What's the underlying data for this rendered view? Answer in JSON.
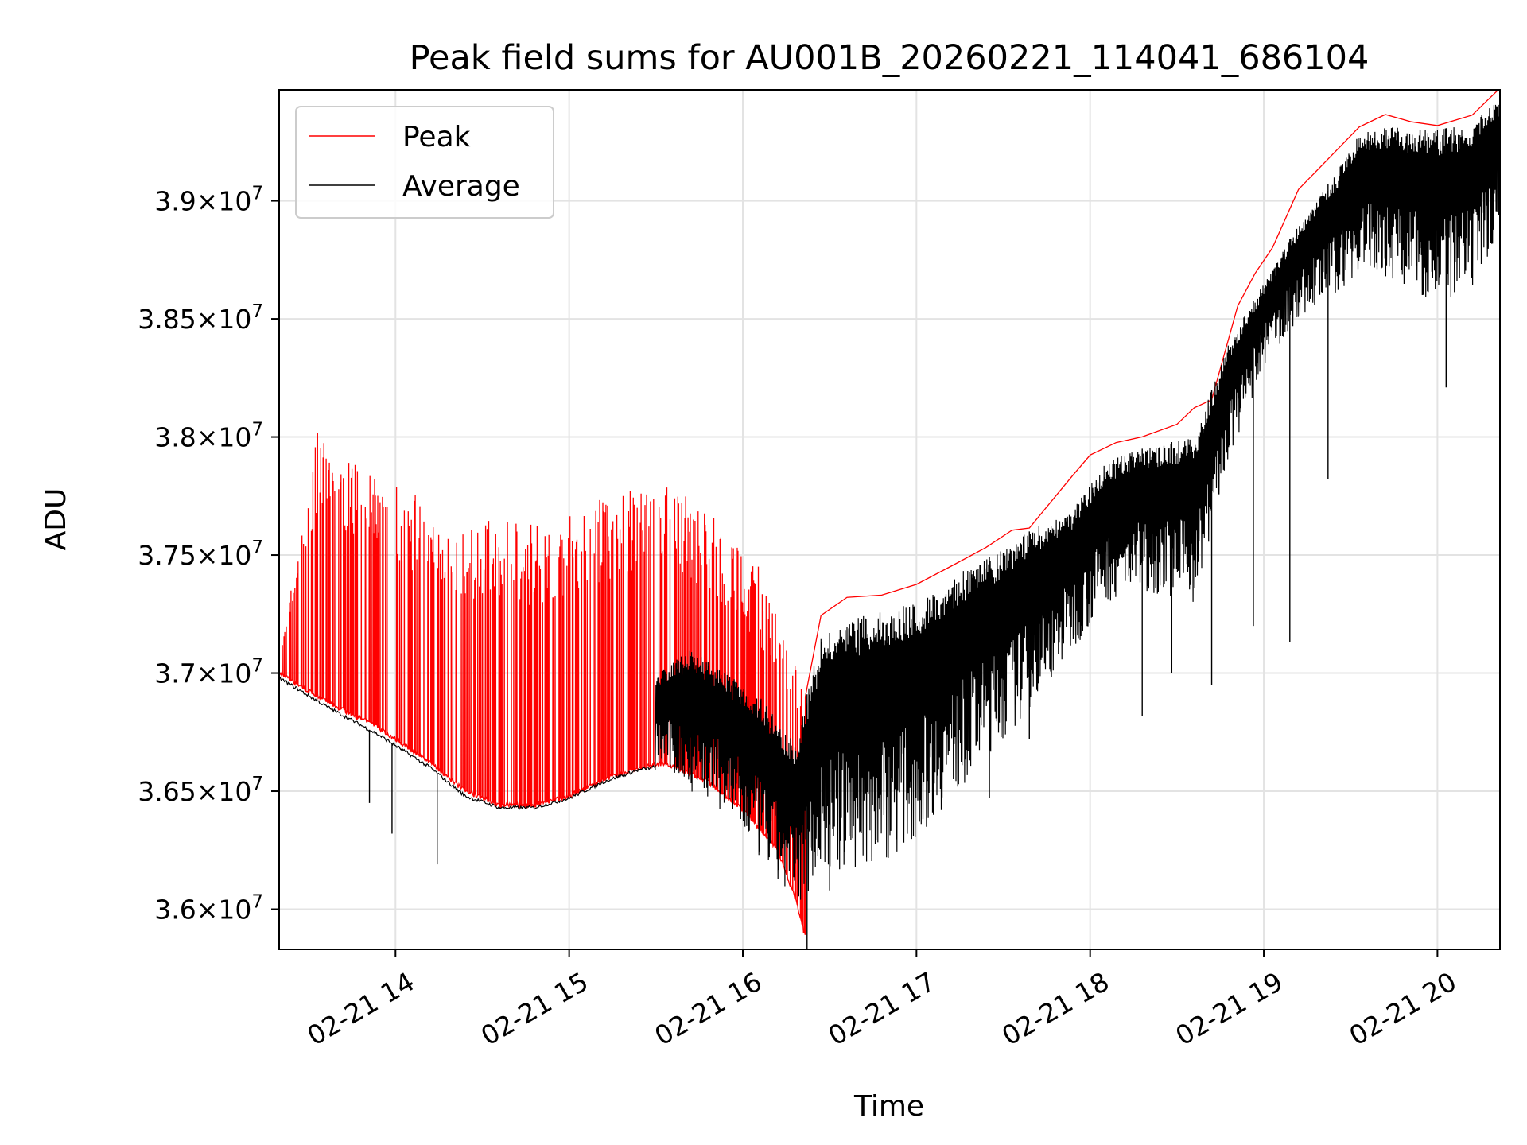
{
  "chart_data": {
    "type": "line",
    "title": "Peak field sums for AU001B_20260221_114041_686104",
    "xlabel": "Time",
    "ylabel": "ADU",
    "xlim": [
      13.33,
      20.36
    ],
    "ylim": [
      35830000,
      39470000
    ],
    "grid": true,
    "legend_position": "top-left",
    "x_ticks": [
      {
        "value": 14,
        "label": "02-21 14"
      },
      {
        "value": 15,
        "label": "02-21 15"
      },
      {
        "value": 16,
        "label": "02-21 16"
      },
      {
        "value": 17,
        "label": "02-21 17"
      },
      {
        "value": 18,
        "label": "02-21 18"
      },
      {
        "value": 19,
        "label": "02-21 19"
      },
      {
        "value": 20,
        "label": "02-21 20"
      }
    ],
    "y_ticks": [
      {
        "value": 36000000,
        "mantissa": "3.6",
        "exponent": "7"
      },
      {
        "value": 36500000,
        "mantissa": "3.65",
        "exponent": "7"
      },
      {
        "value": 37000000,
        "mantissa": "3.7",
        "exponent": "7"
      },
      {
        "value": 37500000,
        "mantissa": "3.75",
        "exponent": "7"
      },
      {
        "value": 38000000,
        "mantissa": "3.8",
        "exponent": "7"
      },
      {
        "value": 38500000,
        "mantissa": "3.85",
        "exponent": "7"
      },
      {
        "value": 39000000,
        "mantissa": "3.9",
        "exponent": "7"
      }
    ],
    "times_symbol": "×",
    "tick_base": "10",
    "series": [
      {
        "name": "Peak",
        "color": "#ff0000",
        "baseline": [
          [
            13.33,
            37000000
          ],
          [
            13.6,
            36880000
          ],
          [
            13.9,
            36770000
          ],
          [
            14.2,
            36620000
          ],
          [
            14.4,
            36500000
          ],
          [
            14.6,
            36440000
          ],
          [
            14.8,
            36440000
          ],
          [
            15.0,
            36480000
          ],
          [
            15.2,
            36550000
          ],
          [
            15.4,
            36600000
          ],
          [
            15.55,
            36620000
          ],
          [
            15.8,
            36540000
          ],
          [
            16.0,
            36420000
          ],
          [
            16.2,
            36250000
          ],
          [
            16.3,
            36050000
          ],
          [
            16.36,
            35880000
          ]
        ],
        "peak_envelope": [
          [
            13.33,
            37050000
          ],
          [
            13.55,
            38050000
          ],
          [
            13.7,
            37900000
          ],
          [
            13.9,
            37850000
          ],
          [
            14.2,
            37720000
          ],
          [
            14.5,
            37650000
          ],
          [
            14.8,
            37650000
          ],
          [
            15.1,
            37720000
          ],
          [
            15.35,
            37780000
          ],
          [
            15.55,
            37820000
          ],
          [
            15.75,
            37720000
          ],
          [
            15.9,
            37620000
          ],
          [
            16.1,
            37450000
          ],
          [
            16.25,
            37150000
          ],
          [
            16.36,
            36900000
          ]
        ],
        "upper_line": [
          [
            16.36,
            36900000
          ],
          [
            16.45,
            37250000
          ],
          [
            16.6,
            37320000
          ],
          [
            16.8,
            37330000
          ],
          [
            17.0,
            37380000
          ],
          [
            17.2,
            37450000
          ],
          [
            17.4,
            37530000
          ],
          [
            17.55,
            37600000
          ],
          [
            17.65,
            37620000
          ],
          [
            17.9,
            37830000
          ],
          [
            18.0,
            37920000
          ],
          [
            18.15,
            37980000
          ],
          [
            18.3,
            38000000
          ],
          [
            18.5,
            38050000
          ],
          [
            18.6,
            38120000
          ],
          [
            18.7,
            38150000
          ],
          [
            18.85,
            38550000
          ],
          [
            18.95,
            38700000
          ],
          [
            19.05,
            38800000
          ],
          [
            19.2,
            39050000
          ],
          [
            19.4,
            39200000
          ],
          [
            19.55,
            39320000
          ],
          [
            19.7,
            39360000
          ],
          [
            19.85,
            39340000
          ],
          [
            20.0,
            39320000
          ],
          [
            20.2,
            39360000
          ],
          [
            20.36,
            39470000
          ]
        ]
      },
      {
        "name": "Average",
        "color": "#000000",
        "baseline": [
          [
            13.33,
            36980000
          ],
          [
            13.6,
            36860000
          ],
          [
            13.9,
            36740000
          ],
          [
            14.2,
            36600000
          ],
          [
            14.4,
            36480000
          ],
          [
            14.6,
            36430000
          ],
          [
            14.8,
            36430000
          ],
          [
            15.0,
            36470000
          ],
          [
            15.2,
            36540000
          ],
          [
            15.4,
            36590000
          ],
          [
            15.55,
            36610000
          ],
          [
            15.8,
            36530000
          ],
          [
            16.0,
            36400000
          ],
          [
            16.2,
            36230000
          ],
          [
            16.3,
            36030000
          ],
          [
            16.36,
            35860000
          ]
        ],
        "dense_top": [
          [
            15.5,
            37000000
          ],
          [
            15.7,
            37100000
          ],
          [
            15.9,
            37000000
          ],
          [
            16.1,
            36900000
          ],
          [
            16.3,
            36700000
          ],
          [
            16.45,
            37150000
          ],
          [
            16.7,
            37250000
          ],
          [
            17.0,
            37300000
          ],
          [
            17.3,
            37450000
          ],
          [
            17.45,
            37500000
          ],
          [
            17.6,
            37580000
          ],
          [
            17.9,
            37700000
          ],
          [
            18.1,
            37900000
          ],
          [
            18.3,
            37950000
          ],
          [
            18.6,
            38000000
          ],
          [
            18.8,
            38400000
          ],
          [
            19.0,
            38650000
          ],
          [
            19.2,
            38900000
          ],
          [
            19.4,
            39100000
          ],
          [
            19.55,
            39280000
          ],
          [
            19.7,
            39320000
          ],
          [
            19.85,
            39300000
          ],
          [
            20.0,
            39300000
          ],
          [
            20.2,
            39330000
          ],
          [
            20.36,
            39440000
          ]
        ],
        "dense_bottom": [
          [
            15.5,
            36600000
          ],
          [
            15.7,
            36500000
          ],
          [
            15.9,
            36400000
          ],
          [
            16.1,
            36200000
          ],
          [
            16.3,
            36000000
          ],
          [
            16.45,
            36150000
          ],
          [
            16.7,
            36150000
          ],
          [
            17.0,
            36300000
          ],
          [
            17.3,
            36550000
          ],
          [
            17.6,
            36800000
          ],
          [
            17.9,
            37100000
          ],
          [
            18.1,
            37300000
          ],
          [
            18.3,
            37350000
          ],
          [
            18.6,
            37300000
          ],
          [
            18.8,
            37900000
          ],
          [
            19.0,
            38300000
          ],
          [
            19.2,
            38500000
          ],
          [
            19.4,
            38600000
          ],
          [
            19.6,
            38700000
          ],
          [
            19.8,
            38650000
          ],
          [
            20.0,
            38550000
          ],
          [
            20.2,
            38600000
          ],
          [
            20.36,
            38900000
          ]
        ],
        "deep_dips": [
          [
            13.85,
            36450000
          ],
          [
            13.98,
            36320000
          ],
          [
            14.24,
            36190000
          ],
          [
            16.37,
            35830000
          ],
          [
            16.5,
            36080000
          ],
          [
            17.42,
            36470000
          ],
          [
            17.65,
            36720000
          ],
          [
            18.3,
            36820000
          ],
          [
            18.47,
            37000000
          ],
          [
            18.7,
            36950000
          ],
          [
            18.94,
            37200000
          ],
          [
            19.15,
            37130000
          ],
          [
            19.37,
            37820000
          ],
          [
            19.9,
            38800000
          ],
          [
            20.05,
            38210000
          ]
        ]
      }
    ]
  }
}
